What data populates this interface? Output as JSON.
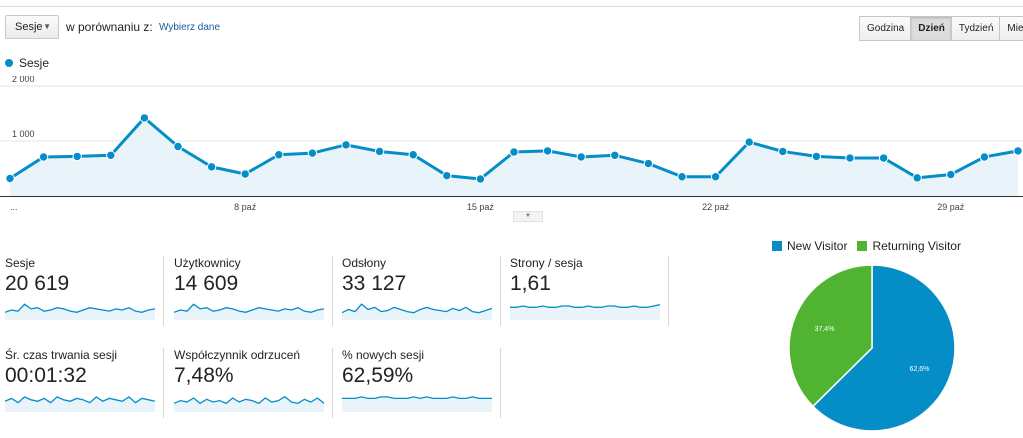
{
  "toolbar": {
    "metric_select": "Sesje",
    "compare_label": "w porównaniu z:",
    "compare_link": "Wybierz dane",
    "periods": [
      "Godzina",
      "Dzień",
      "Tydzień",
      "Miesi"
    ],
    "active_period": "Dzień"
  },
  "chart_data": [
    {
      "type": "area",
      "series": [
        {
          "name": "Sesje",
          "color": "#058dc7",
          "values": [
            320,
            710,
            720,
            740,
            1420,
            900,
            530,
            400,
            750,
            780,
            930,
            810,
            750,
            370,
            310,
            800,
            820,
            710,
            740,
            590,
            350,
            350,
            980,
            810,
            720,
            690,
            690,
            330,
            390,
            710,
            820
          ]
        }
      ],
      "y_ticks": [
        "1 000",
        "2 000"
      ],
      "y_tick_values": [
        1000,
        2000
      ],
      "ylim": [
        0,
        2000
      ],
      "x_tick_labels": [
        "...",
        "8 paź",
        "15 paź",
        "22 paź",
        "29 paź"
      ],
      "x_tick_index": [
        0,
        7,
        14,
        21,
        28
      ],
      "grid": true
    },
    {
      "type": "pie",
      "labels": [
        "New Visitor",
        "Returning Visitor"
      ],
      "values": [
        62.6,
        37.4
      ],
      "value_labels": [
        "62,6%",
        "37,4%"
      ],
      "colors": [
        "#058dc7",
        "#50b432"
      ],
      "legend": "top"
    }
  ],
  "tiles": [
    {
      "label": "Sesje",
      "value": "20 619",
      "spark": [
        5,
        7,
        6,
        12,
        8,
        9,
        6,
        7,
        9,
        8,
        6,
        5,
        7,
        9,
        8,
        7,
        6,
        8,
        7,
        9,
        6,
        5,
        7,
        8
      ]
    },
    {
      "label": "Użytkownicy",
      "value": "14 609",
      "spark": [
        5,
        7,
        6,
        12,
        8,
        9,
        6,
        7,
        9,
        8,
        6,
        5,
        7,
        9,
        8,
        7,
        6,
        8,
        7,
        9,
        6,
        5,
        7,
        8
      ]
    },
    {
      "label": "Odsłony",
      "value": "33 127",
      "spark": [
        5,
        8,
        6,
        13,
        8,
        10,
        6,
        7,
        10,
        8,
        6,
        5,
        8,
        10,
        8,
        7,
        6,
        9,
        7,
        10,
        6,
        5,
        7,
        9
      ]
    },
    {
      "label": "Strony / sesja",
      "value": "1,61",
      "spark": [
        8,
        8,
        9,
        8,
        8,
        9,
        8,
        8,
        9,
        9,
        8,
        8,
        9,
        8,
        8,
        9,
        9,
        8,
        8,
        9,
        8,
        8,
        9,
        10
      ]
    },
    {
      "label": "Śr. czas trwania sesji",
      "value": "00:01:32",
      "spark": [
        6,
        8,
        5,
        9,
        7,
        6,
        8,
        5,
        9,
        7,
        6,
        8,
        7,
        5,
        9,
        6,
        8,
        7,
        6,
        9,
        5,
        8,
        7,
        6
      ]
    },
    {
      "label": "Współczynnik odrzuceń",
      "value": "7,48%",
      "spark": [
        5,
        7,
        6,
        9,
        5,
        8,
        6,
        7,
        5,
        9,
        6,
        8,
        7,
        5,
        9,
        6,
        7,
        10,
        6,
        5,
        8,
        6,
        9,
        5
      ]
    },
    {
      "label": "% nowych sesji",
      "value": "62,59%",
      "spark": [
        8,
        8,
        8,
        9,
        8,
        8,
        9,
        9,
        8,
        8,
        8,
        9,
        8,
        9,
        8,
        8,
        8,
        9,
        8,
        8,
        9,
        8,
        8,
        8
      ]
    }
  ]
}
